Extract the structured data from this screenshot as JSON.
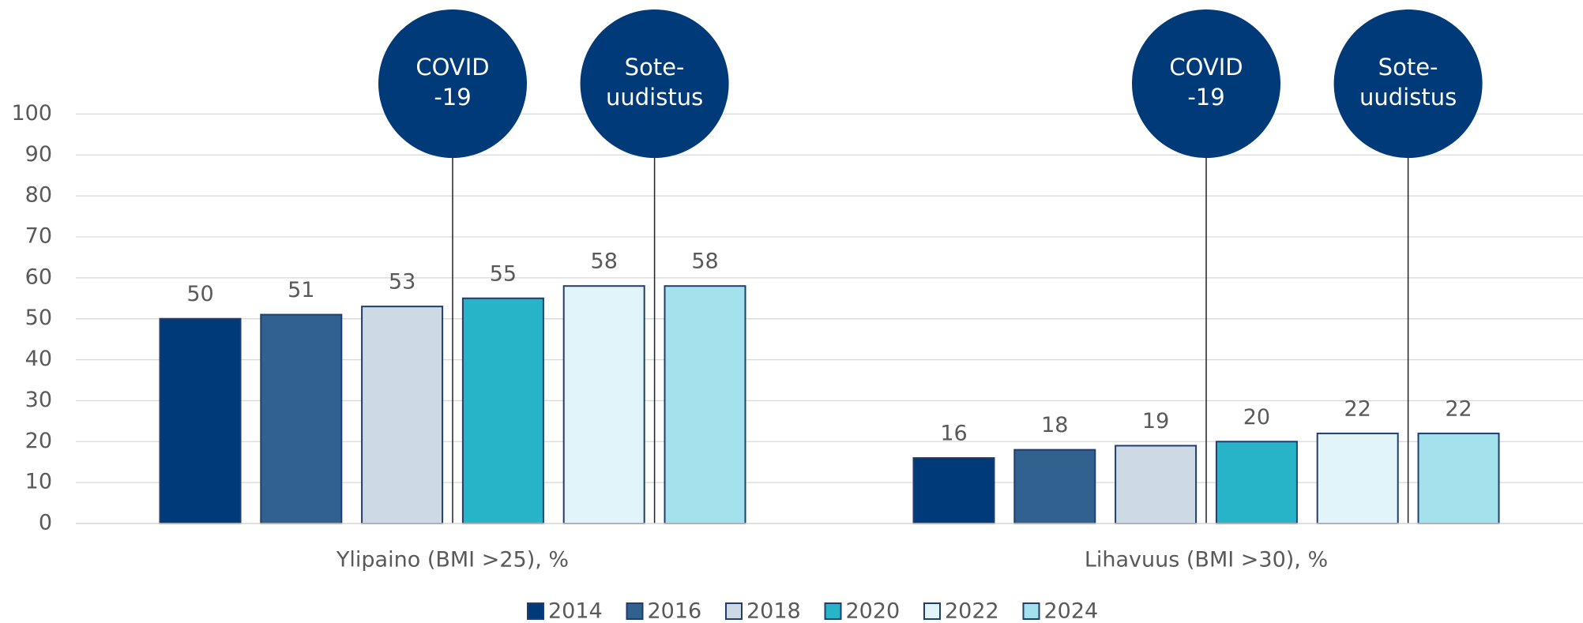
{
  "chart_data": {
    "type": "bar",
    "categories": [
      "Ylipaino (BMI >25), %",
      "Lihavuus (BMI >30), %"
    ],
    "series": [
      {
        "name": "2014",
        "color": "#003a78",
        "values": [
          50,
          16
        ]
      },
      {
        "name": "2016",
        "color": "#31628f",
        "values": [
          51,
          18
        ]
      },
      {
        "name": "2018",
        "color": "#cdd9e5",
        "values": [
          53,
          19
        ]
      },
      {
        "name": "2020",
        "color": "#27b4c9",
        "values": [
          55,
          20
        ]
      },
      {
        "name": "2022",
        "color": "#e1f4f9",
        "values": [
          58,
          22
        ]
      },
      {
        "name": "2024",
        "color": "#a3e2ec",
        "values": [
          58,
          22
        ]
      }
    ],
    "ylim": [
      0,
      100
    ],
    "yticks": [
      0,
      10,
      20,
      30,
      40,
      50,
      60,
      70,
      80,
      90,
      100
    ],
    "grid": true,
    "legend": "bottom",
    "annotations": [
      {
        "lines": [
          "COVID",
          "-19"
        ]
      },
      {
        "lines": [
          "Sote-",
          "uudistus"
        ]
      }
    ]
  }
}
